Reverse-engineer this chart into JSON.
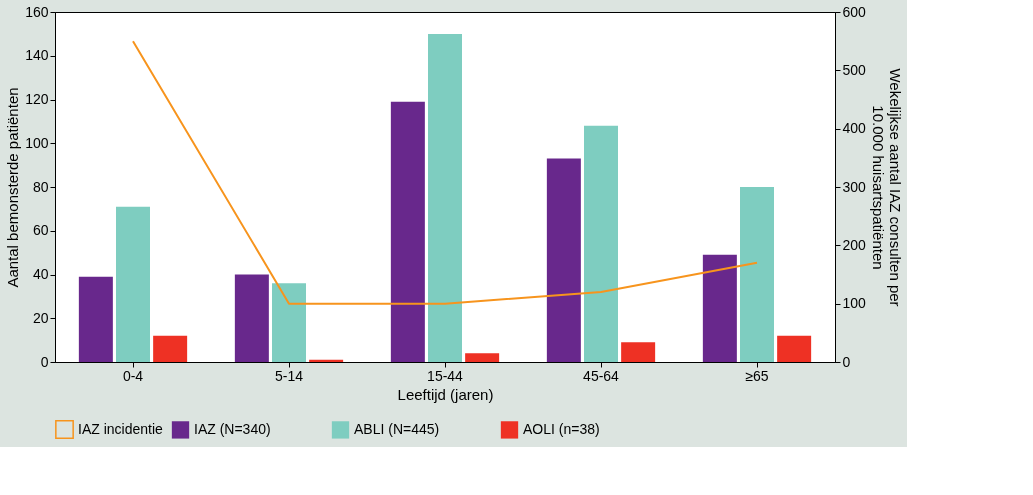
{
  "chart_data": {
    "type": "bar",
    "xlabel": "Leeftijd (jaren)",
    "ylabel": "Aantal bemonsterde patiënten",
    "y2label": "Wekelijkse aantal IAZ consulten per\n10.000 huisartspatiënten",
    "categories": [
      "0-4",
      "5-14",
      "15-44",
      "45-64",
      "≥65"
    ],
    "series": [
      {
        "name": "IAZ (N=340)",
        "color": "#68288c",
        "values": [
          39,
          40,
          119,
          93,
          49
        ]
      },
      {
        "name": "ABLI (N=445)",
        "color": "#7ecdc0",
        "values": [
          71,
          36,
          150,
          108,
          80
        ]
      },
      {
        "name": "AOLI (n=38)",
        "color": "#ee3124",
        "values": [
          12,
          1,
          4,
          9,
          12
        ]
      },
      {
        "name": "IAZ incidentie",
        "color": "#f7941d",
        "type": "line",
        "axis": "y2",
        "values": [
          550,
          100,
          100,
          120,
          170
        ]
      }
    ],
    "ylim": [
      0,
      160
    ],
    "yticks": [
      0,
      20,
      40,
      60,
      80,
      100,
      120,
      140,
      160
    ],
    "y2lim": [
      0,
      600
    ],
    "y2ticks": [
      0,
      100,
      200,
      300,
      400,
      500,
      600
    ],
    "grid": false,
    "legend": "bottom"
  }
}
